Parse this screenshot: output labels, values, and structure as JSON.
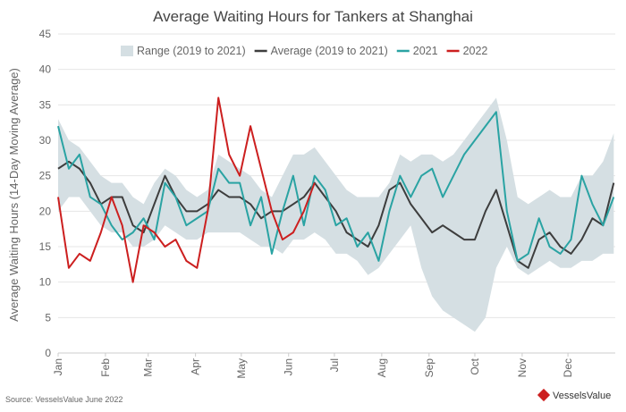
{
  "chart_data": {
    "type": "line",
    "title": "Average Waiting Hours for Tankers at Shanghai",
    "y_label": "Average Waiting Hours (14-Day Moving Average)",
    "source": "Source: VesselsValue June 2022",
    "logo": "VesselsValue",
    "xlim": [
      0,
      365
    ],
    "xticks": [
      {
        "value": 0,
        "label": "Jan"
      },
      {
        "value": 31,
        "label": "Feb"
      },
      {
        "value": 59,
        "label": "Mar"
      },
      {
        "value": 90,
        "label": "Apr"
      },
      {
        "value": 120,
        "label": "May"
      },
      {
        "value": 151,
        "label": "Jun"
      },
      {
        "value": 181,
        "label": "Jul"
      },
      {
        "value": 212,
        "label": "Aug"
      },
      {
        "value": 243,
        "label": "Sep"
      },
      {
        "value": 273,
        "label": "Oct"
      },
      {
        "value": 304,
        "label": "Nov"
      },
      {
        "value": 334,
        "label": "Dec"
      }
    ],
    "ylim": [
      0,
      45
    ],
    "yticks": [
      0,
      5,
      10,
      15,
      20,
      25,
      30,
      35,
      40,
      45
    ],
    "grid": true,
    "x": [
      0,
      7,
      14,
      21,
      28,
      35,
      42,
      49,
      56,
      63,
      70,
      77,
      84,
      91,
      98,
      105,
      112,
      119,
      126,
      133,
      140,
      147,
      154,
      161,
      168,
      175,
      182,
      189,
      196,
      203,
      210,
      217,
      224,
      231,
      238,
      245,
      252,
      259,
      266,
      273,
      280,
      287,
      294,
      301,
      308,
      315,
      322,
      329,
      336,
      343,
      350,
      357,
      364
    ],
    "series": [
      {
        "name": "Range (2019 to 2021)",
        "color": "#d5dfe3",
        "low": [
          20,
          22,
          22,
          20,
          18,
          17,
          17,
          15,
          15,
          16,
          18,
          17,
          16,
          16,
          17,
          17,
          17,
          17,
          16,
          15,
          15,
          14,
          16,
          16,
          17,
          16,
          14,
          14,
          13,
          11,
          12,
          14,
          16,
          18,
          12,
          8,
          6,
          5,
          4,
          3,
          5,
          12,
          15,
          12,
          11,
          12,
          13,
          12,
          12,
          13,
          13,
          14,
          14
        ],
        "high": [
          33,
          30,
          29,
          27,
          25,
          24,
          24,
          22,
          21,
          24,
          26,
          25,
          23,
          22,
          23,
          28,
          27,
          26,
          25,
          23,
          22,
          25,
          28,
          28,
          29,
          27,
          25,
          23,
          22,
          22,
          22,
          24,
          28,
          27,
          28,
          28,
          27,
          28,
          30,
          32,
          34,
          36,
          30,
          22,
          21,
          22,
          23,
          22,
          22,
          25,
          25,
          27,
          31
        ]
      },
      {
        "name": "Average (2019 to 2021)",
        "color": "#3d3d3d",
        "values": [
          26,
          27,
          26,
          24,
          21,
          22,
          22,
          18,
          17,
          21,
          25,
          22,
          20,
          20,
          21,
          23,
          22,
          22,
          21,
          19,
          20,
          20,
          21,
          22,
          24,
          22,
          20,
          17,
          16,
          15,
          18,
          23,
          24,
          21,
          19,
          17,
          18,
          17,
          16,
          16,
          20,
          23,
          18,
          13,
          12,
          16,
          17,
          15,
          14,
          16,
          19,
          18,
          24
        ]
      },
      {
        "name": "2021",
        "color": "#2aa3a3",
        "values": [
          32,
          26,
          28,
          22,
          21,
          18,
          16,
          17,
          19,
          16,
          24,
          22,
          18,
          19,
          20,
          26,
          24,
          24,
          18,
          22,
          14,
          20,
          25,
          18,
          25,
          23,
          18,
          19,
          15,
          17,
          13,
          20,
          25,
          22,
          25,
          26,
          22,
          25,
          28,
          30,
          32,
          34,
          20,
          13,
          14,
          19,
          15,
          14,
          16,
          25,
          21,
          18,
          22
        ]
      },
      {
        "name": "2022",
        "color": "#cc1f1f",
        "values": [
          22,
          12,
          14,
          13,
          17,
          22,
          18,
          10,
          18,
          17,
          15,
          16,
          13,
          12,
          20,
          36,
          28,
          25,
          32,
          26,
          20,
          16,
          17,
          20,
          24,
          null,
          null,
          null,
          null,
          null,
          null,
          null,
          null,
          null,
          null,
          null,
          null,
          null,
          null,
          null,
          null,
          null,
          null,
          null,
          null,
          null,
          null,
          null,
          null,
          null,
          null,
          null,
          null
        ]
      }
    ]
  }
}
